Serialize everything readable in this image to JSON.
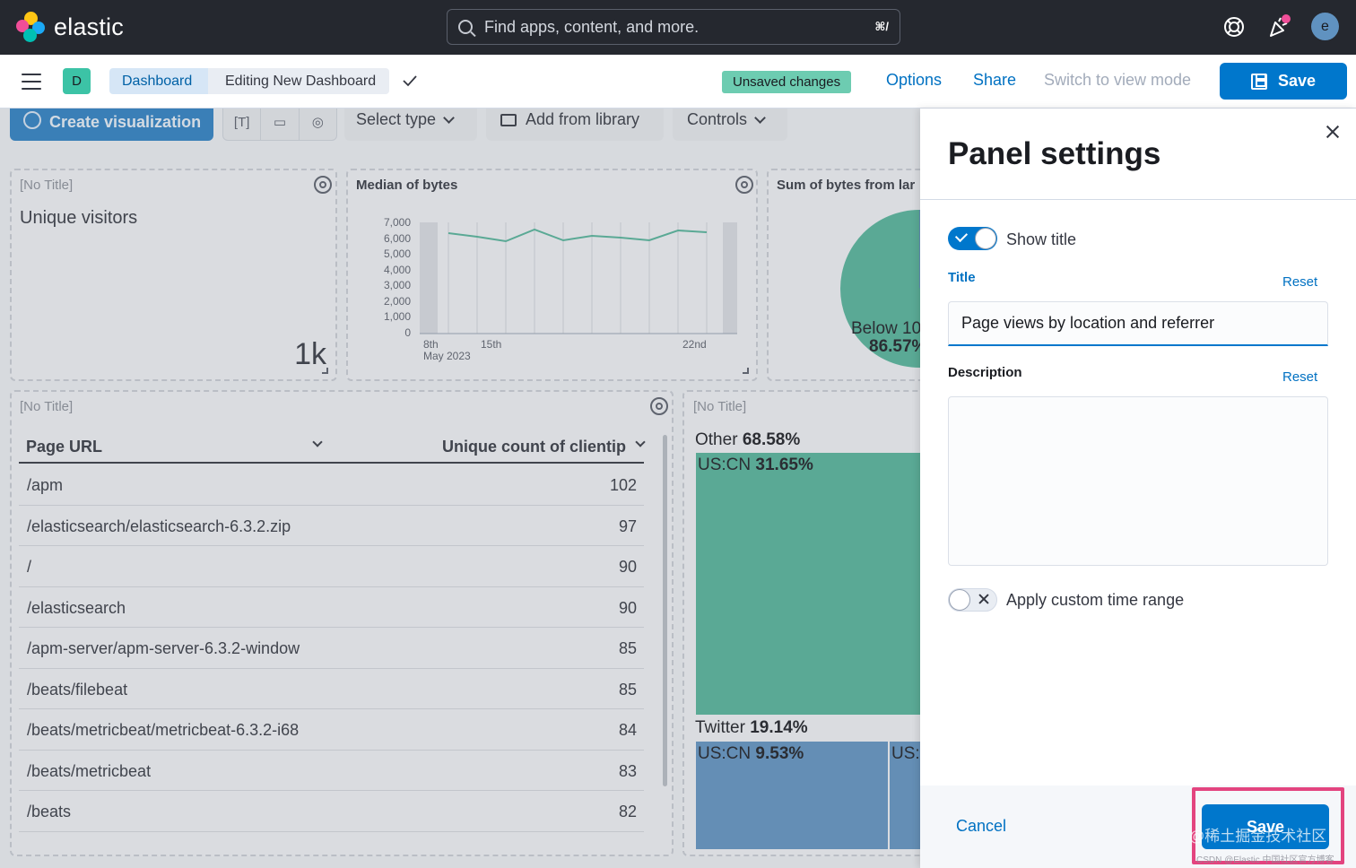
{
  "header": {
    "logo_text": "elastic",
    "search_placeholder": "Find apps, content, and more.",
    "search_shortcut": "⌘/",
    "avatar_initial": "e",
    "icons": [
      "help-icon",
      "news-feed-icon",
      "user-avatar"
    ]
  },
  "nav": {
    "space_initial": "D",
    "breadcrumbs": [
      "Dashboard",
      "Editing New Dashboard"
    ],
    "unsaved_badge": "Unsaved changes",
    "options": "Options",
    "share": "Share",
    "switch_mode": "Switch to view mode",
    "save": "Save"
  },
  "toolbar": {
    "create_visualization": "Create visualization",
    "select_type": "Select type",
    "add_from_library": "Add from library",
    "controls": "Controls"
  },
  "panels": {
    "metric": {
      "title": "[No Title]",
      "label": "Unique visitors",
      "value": "1k"
    },
    "median": {
      "title": "Median of bytes",
      "y_ticks": [
        "7,000",
        "6,000",
        "5,000",
        "4,000",
        "3,000",
        "2,000",
        "1,000",
        "0"
      ],
      "x_ticks": [
        "8th",
        "15th",
        "22nd"
      ],
      "x_sub": "May 2023"
    },
    "pie": {
      "title": "Sum of bytes from lar",
      "label_1": "Below 10",
      "label_2": "86.57%"
    },
    "table": {
      "title": "[No Title]",
      "col_url": "Page URL",
      "col_count": "Unique count of clientip",
      "rows": [
        {
          "url": "/apm",
          "count": "102"
        },
        {
          "url": "/elasticsearch/elasticsearch-6.3.2.zip",
          "count": "97"
        },
        {
          "url": "/",
          "count": "90"
        },
        {
          "url": "/elasticsearch",
          "count": "90"
        },
        {
          "url": "/apm-server/apm-server-6.3.2-window",
          "count": "85"
        },
        {
          "url": "/beats/filebeat",
          "count": "85"
        },
        {
          "url": "/beats/metricbeat/metricbeat-6.3.2-i68",
          "count": "84"
        },
        {
          "url": "/beats/metricbeat",
          "count": "83"
        },
        {
          "url": "/beats",
          "count": "82"
        }
      ]
    },
    "treemap": {
      "title": "[No Title]",
      "other_label": "Other",
      "other_value": "68.58%",
      "uscn_label": "US:CN",
      "uscn_value": "31.65%",
      "twitter_label": "Twitter",
      "twitter_value": "19.14%",
      "uscn2_label": "US:CN",
      "uscn2_value": "9.53%",
      "us_partial": "US:"
    }
  },
  "flyout": {
    "title": "Panel settings",
    "show_title_label": "Show title",
    "show_title_on": true,
    "title_label": "Title",
    "title_reset": "Reset",
    "title_value": "Page views by location and referrer",
    "description_label": "Description",
    "description_reset": "Reset",
    "description_value": "",
    "custom_time_label": "Apply custom time range",
    "custom_time_on": false,
    "cancel": "Cancel",
    "save": "Save"
  },
  "watermark": {
    "main": "@稀土掘金技术社区",
    "sub": "CSDN @Elastic 中国社区官方博客"
  },
  "colors": {
    "header_bg": "#25282f",
    "primary": "#0077cc",
    "link": "#0071c2",
    "unsaved_badge": "#6dccb1",
    "treemap_green": "#54b399",
    "treemap_blue": "#6092c0",
    "highlight": "#e3447f"
  }
}
